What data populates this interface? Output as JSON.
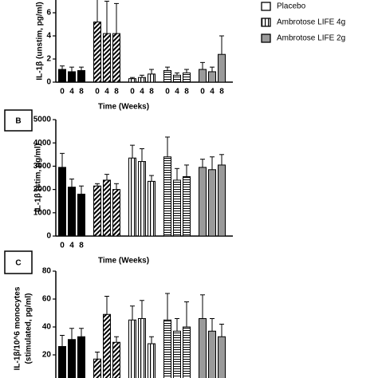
{
  "chart_data": [
    {
      "type": "bar",
      "y_label": "IL-1β (unstim, pg/ml)",
      "x_label": "Time (Weeks)",
      "categories": [
        "0",
        "4",
        "8"
      ],
      "x_labels_on": "all",
      "ylim": [
        0,
        8
      ],
      "yticks": [
        0,
        2,
        4,
        6
      ],
      "groups": [
        {
          "fill": "black",
          "values": [
            1.1,
            0.9,
            1.0
          ],
          "errors": [
            0.3,
            0.4,
            0.3
          ]
        },
        {
          "fill": "diagonal",
          "values": [
            5.2,
            4.2,
            4.2
          ],
          "errors": [
            2.5,
            2.8,
            2.6
          ]
        },
        {
          "fill": "vertical",
          "values": [
            0.3,
            0.4,
            0.7
          ],
          "errors": [
            0.1,
            0.2,
            0.4
          ]
        },
        {
          "fill": "horizontal",
          "values": [
            1.0,
            0.6,
            0.8
          ],
          "errors": [
            0.3,
            0.2,
            0.3
          ]
        },
        {
          "fill": "gray",
          "values": [
            1.1,
            0.9,
            2.4
          ],
          "errors": [
            0.6,
            0.4,
            1.6
          ]
        }
      ],
      "legend": [
        {
          "name": "Placebo",
          "fill": "white"
        },
        {
          "name": "Ambrotose LIFE 4g",
          "fill": "vertical"
        },
        {
          "name": "Ambrotose LIFE 2g",
          "fill": "gray"
        }
      ]
    },
    {
      "type": "bar",
      "panel_label": "B",
      "y_label": "IL-1β (stim, pg/ml)",
      "x_label": "Time (Weeks)",
      "categories": [
        "0",
        "4",
        "8"
      ],
      "x_labels_on": "first",
      "ylim": [
        0,
        5000
      ],
      "yticks": [
        0,
        1000,
        2000,
        3000,
        4000,
        5000
      ],
      "groups": [
        {
          "fill": "black",
          "values": [
            2950,
            2100,
            1800
          ],
          "errors": [
            600,
            350,
            350
          ]
        },
        {
          "fill": "diagonal",
          "values": [
            2150,
            2400,
            2000
          ],
          "errors": [
            100,
            250,
            250
          ]
        },
        {
          "fill": "vertical",
          "values": [
            3350,
            3200,
            2350
          ],
          "errors": [
            550,
            550,
            250
          ]
        },
        {
          "fill": "horizontal",
          "values": [
            3400,
            2400,
            2550
          ],
          "errors": [
            850,
            500,
            500
          ]
        },
        {
          "fill": "gray",
          "values": [
            2950,
            2850,
            3050
          ],
          "errors": [
            350,
            550,
            450
          ]
        }
      ]
    },
    {
      "type": "bar",
      "panel_label": "C",
      "y_label": [
        "IL-1β/10^6 monocytes",
        "(stimulated, pg/ml)"
      ],
      "ylim": [
        0,
        80
      ],
      "yticks": [
        20,
        40,
        60,
        80
      ],
      "groups": [
        {
          "fill": "black",
          "values": [
            26,
            31,
            33
          ],
          "errors": [
            8,
            8,
            6
          ]
        },
        {
          "fill": "diagonal",
          "values": [
            17,
            49,
            29
          ],
          "errors": [
            5,
            13,
            4
          ]
        },
        {
          "fill": "vertical",
          "values": [
            45,
            46,
            28
          ],
          "errors": [
            10,
            13,
            5
          ]
        },
        {
          "fill": "horizontal",
          "values": [
            45,
            37,
            40
          ],
          "errors": [
            19,
            9,
            18
          ]
        },
        {
          "fill": "gray",
          "values": [
            46,
            37,
            33
          ],
          "errors": [
            17,
            9,
            9
          ]
        }
      ]
    }
  ]
}
